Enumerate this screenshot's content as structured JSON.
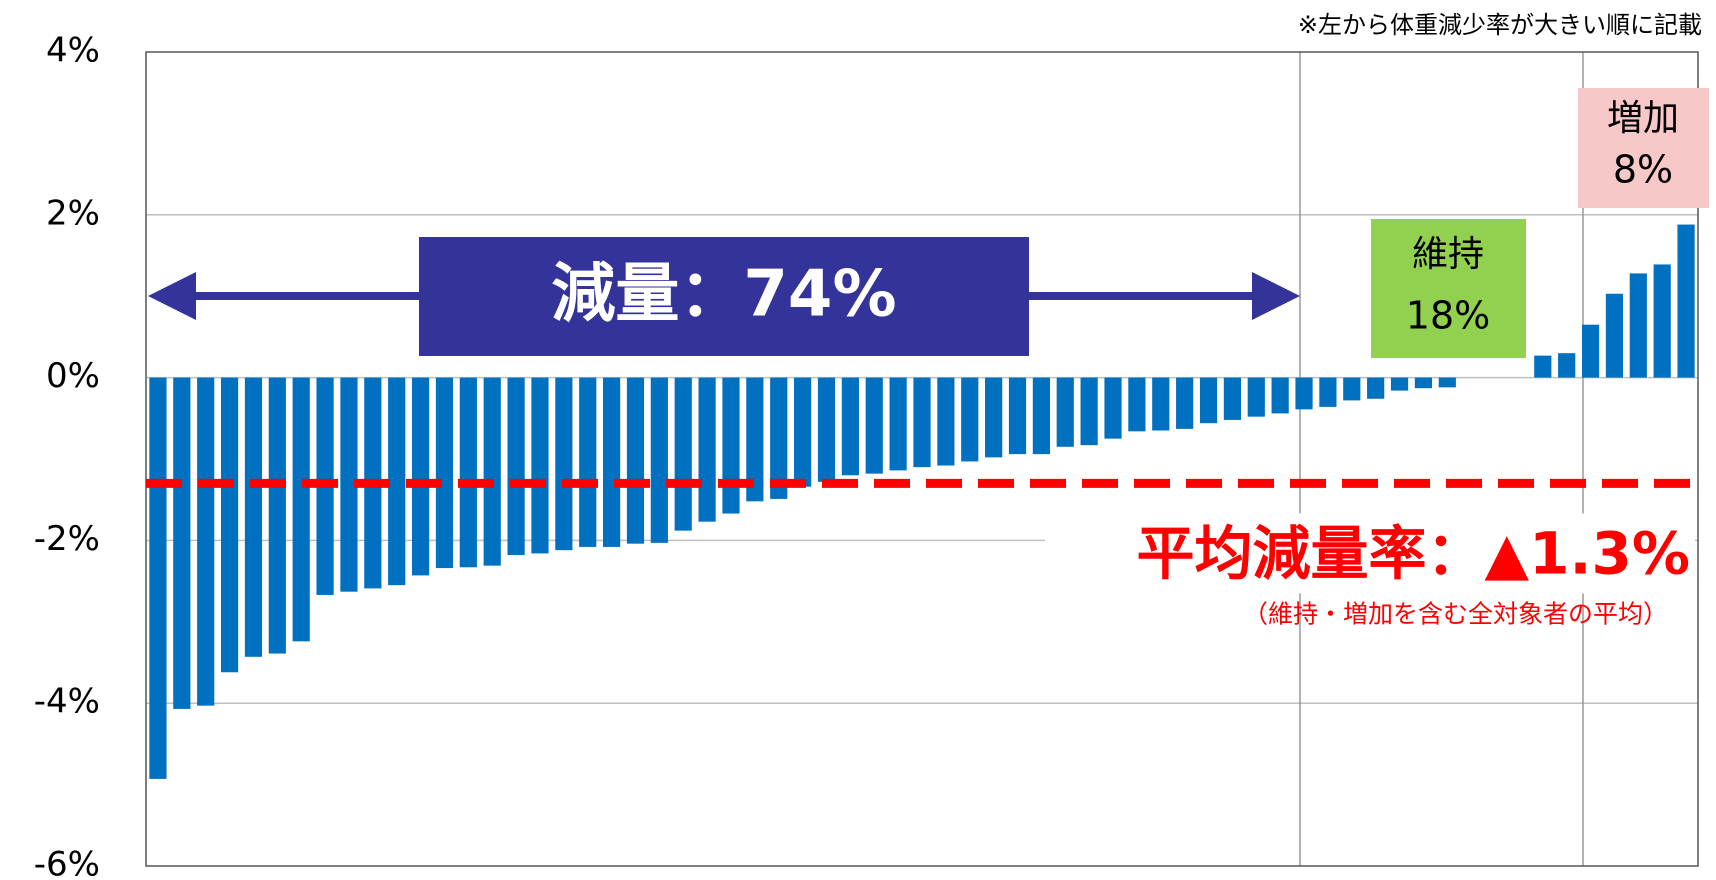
{
  "chart_data": {
    "type": "bar",
    "note": "※左から体重減少率が大きい順に記載",
    "categories": [
      null,
      null,
      null,
      null,
      null,
      null,
      null,
      null,
      null,
      null,
      null,
      null,
      null,
      null,
      null,
      null,
      null,
      null,
      null,
      null,
      null,
      null,
      null,
      null,
      null,
      null,
      null,
      null,
      null,
      null,
      null,
      null,
      null,
      null,
      null,
      null,
      null,
      null,
      null,
      null,
      null,
      null,
      null,
      null,
      null,
      null,
      null,
      null,
      null,
      null,
      null,
      null,
      null,
      null,
      null,
      null,
      null,
      null,
      null,
      null,
      null,
      null,
      null,
      null,
      null
    ],
    "values": [
      -4.93,
      -4.07,
      -4.03,
      -3.62,
      -3.43,
      -3.39,
      -3.24,
      -2.67,
      -2.63,
      -2.59,
      -2.55,
      -2.43,
      -2.34,
      -2.33,
      -2.31,
      -2.18,
      -2.16,
      -2.12,
      -2.08,
      -2.08,
      -2.04,
      -2.03,
      -1.88,
      -1.77,
      -1.67,
      -1.52,
      -1.49,
      -1.34,
      -1.28,
      -1.2,
      -1.18,
      -1.14,
      -1.1,
      -1.08,
      -1.03,
      -0.98,
      -0.94,
      -0.94,
      -0.85,
      -0.83,
      -0.75,
      -0.66,
      -0.65,
      -0.63,
      -0.56,
      -0.52,
      -0.48,
      -0.44,
      -0.39,
      -0.36,
      -0.28,
      -0.26,
      -0.16,
      -0.13,
      -0.12,
      0,
      0,
      0,
      0.27,
      0.3,
      0.65,
      1.03,
      1.28,
      1.39,
      1.88
    ],
    "color": "#0070c0",
    "ylim": [
      -6,
      4
    ],
    "yticks": [
      {
        "value": -6,
        "label": "-6%"
      },
      {
        "value": -4,
        "label": "-4%"
      },
      {
        "value": -2,
        "label": "-2%"
      },
      {
        "value": 0,
        "label": "0%"
      },
      {
        "value": 2,
        "label": "2%"
      },
      {
        "value": 4,
        "label": "4%"
      }
    ],
    "grid": true,
    "average_line": -1.3,
    "average_label": "平均減量率：▲1.3%",
    "average_note": "（維持・増加を含む全対象者の平均）",
    "groups": [
      {
        "label": "減量：74%",
        "color": "#333399"
      },
      {
        "label_1": "維持",
        "label_2": "18%",
        "color": "#92d050"
      },
      {
        "label_1": "増加",
        "label_2": "8%",
        "color": "#f8c8c8"
      }
    ]
  }
}
